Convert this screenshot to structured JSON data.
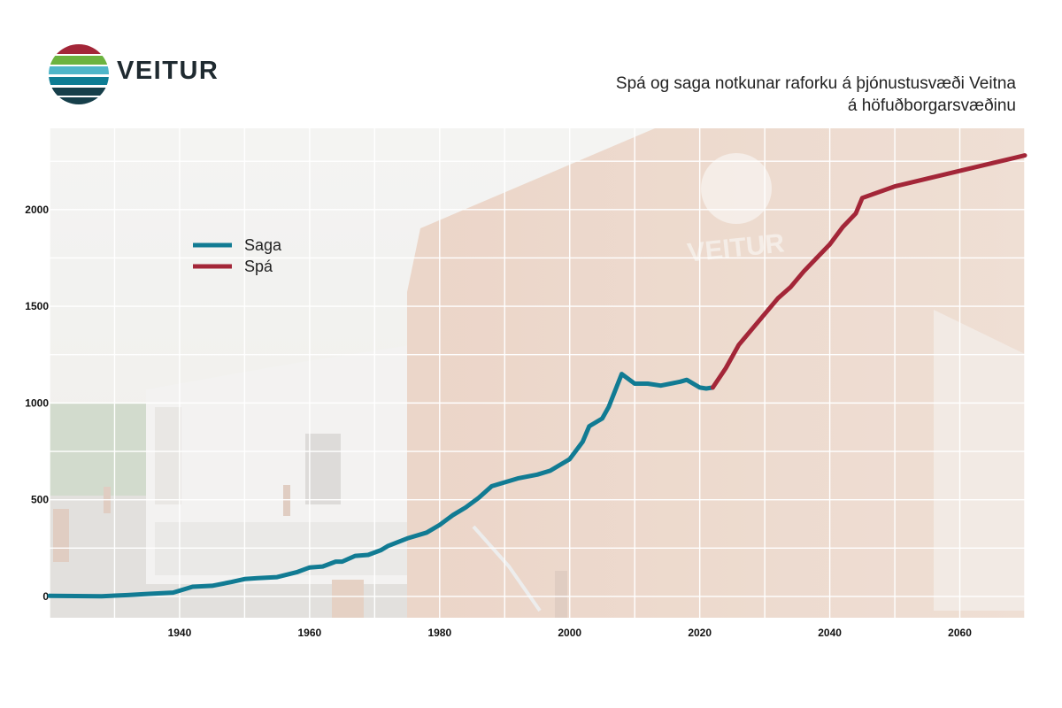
{
  "brand": {
    "name": "VEITUR",
    "colors": [
      "#a32638",
      "#6cb33f",
      "#4fb6c9",
      "#0e7d94",
      "#163f4a"
    ]
  },
  "chart_data": {
    "type": "line",
    "title_lines": [
      "Spá og saga notkunar raforku á þjónustusvæði Veitna",
      "á höfuðborgarsvæðinu"
    ],
    "xlabel": "",
    "ylabel": "",
    "xlim": [
      1920,
      2070
    ],
    "ylim": [
      -110,
      2420
    ],
    "x_ticks": [
      1940,
      1960,
      1980,
      2000,
      2020,
      2040,
      2060
    ],
    "y_ticks": [
      0,
      500,
      1000,
      1500,
      2000
    ],
    "x_tick_labels": [
      "1940",
      "1960",
      "1980",
      "2000",
      "2020",
      "2040",
      "2060"
    ],
    "y_tick_labels": [
      "0",
      "500",
      "1000",
      "1500",
      "2000"
    ],
    "grid": true,
    "legend_position": "upper-left",
    "background": "faded photograph of a Veitur building",
    "series": [
      {
        "name": "Saga",
        "color": "#117b93",
        "x": [
          1920,
          1924,
          1928,
          1932,
          1935,
          1939,
          1942,
          1945,
          1948,
          1950,
          1952,
          1955,
          1958,
          1960,
          1962,
          1964,
          1965,
          1967,
          1969,
          1971,
          1972,
          1975,
          1978,
          1980,
          1982,
          1984,
          1986,
          1988,
          1990,
          1992,
          1995,
          1997,
          2000,
          2002,
          2003,
          2005,
          2006,
          2008,
          2010,
          2012,
          2014,
          2017,
          2018,
          2020,
          2021,
          2022
        ],
        "y": [
          3,
          2,
          1,
          7,
          13,
          20,
          50,
          55,
          75,
          90,
          95,
          100,
          125,
          150,
          155,
          180,
          180,
          210,
          215,
          240,
          260,
          300,
          330,
          370,
          420,
          460,
          510,
          570,
          590,
          610,
          630,
          650,
          710,
          800,
          880,
          920,
          980,
          1150,
          1100,
          1100,
          1090,
          1110,
          1120,
          1080,
          1075,
          1080
        ]
      },
      {
        "name": "Spá",
        "color": "#a32638",
        "x": [
          2022,
          2024,
          2026,
          2028,
          2030,
          2032,
          2034,
          2036,
          2038,
          2040,
          2042,
          2044,
          2045,
          2050,
          2055,
          2060,
          2065,
          2070
        ],
        "y": [
          1080,
          1180,
          1300,
          1380,
          1460,
          1540,
          1600,
          1680,
          1750,
          1820,
          1910,
          1980,
          2060,
          2120,
          2160,
          2200,
          2240,
          2280
        ]
      }
    ]
  }
}
